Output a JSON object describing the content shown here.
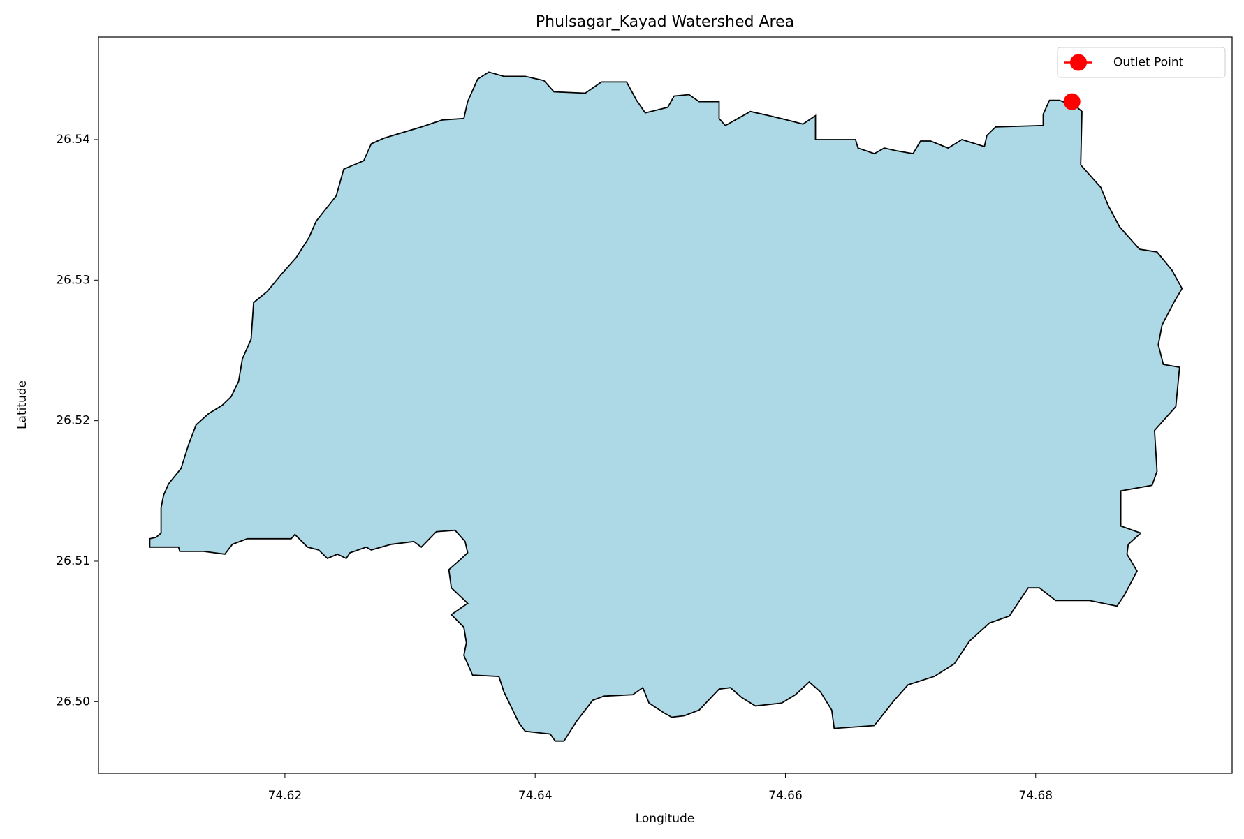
{
  "chart_data": {
    "type": "map",
    "title": "Phulsagar_Kayad Watershed Area",
    "x_label": "Longitude",
    "y_label": "Latitude",
    "xlim": [
      74.6051,
      74.6957
    ],
    "ylim": [
      26.4949,
      26.5473
    ],
    "xticks": [
      74.62,
      74.64,
      74.66,
      74.68
    ],
    "yticks": [
      {
        "value": 26.5,
        "label": "26.50"
      },
      26.51,
      26.52,
      26.53,
      26.54
    ],
    "grid": false,
    "legend_position": "upper right",
    "boundary": {
      "color": "#add8e6",
      "edge_color": "#000000",
      "x": [
        74.6092,
        74.6092,
        74.6115,
        74.6116,
        74.6135,
        74.6152,
        74.6158,
        74.617,
        74.6205,
        74.6208,
        74.6218,
        74.6227,
        74.6234,
        74.6242,
        74.6249,
        74.6252,
        74.6265,
        74.6269,
        74.6285,
        74.6303,
        74.6309,
        74.6321,
        74.6336,
        74.6344,
        74.6346,
        74.634,
        74.6331,
        74.6333,
        74.6346,
        74.6333,
        74.6343,
        74.6345,
        74.6343,
        74.635,
        74.6371,
        74.6375,
        74.6387,
        74.6392,
        74.6412,
        74.6416,
        74.6423,
        74.6433,
        74.6446,
        74.6455,
        74.6478,
        74.6486,
        74.6491,
        74.6503,
        74.6509,
        74.6519,
        74.6531,
        74.6547,
        74.6556,
        74.6565,
        74.6576,
        74.6597,
        74.6608,
        74.6619,
        74.6628,
        74.6637,
        74.6639,
        74.6671,
        74.6687,
        74.6698,
        74.6719,
        74.6735,
        74.6747,
        74.6763,
        74.6779,
        74.6794,
        74.6803,
        74.6816,
        74.6843,
        74.6865,
        74.6871,
        74.6881,
        74.6873,
        74.6874,
        74.6884,
        74.6868,
        74.6868,
        74.6893,
        74.6897,
        74.6895,
        74.6912,
        74.6915,
        74.6902,
        74.6898,
        74.6901,
        74.6911,
        74.6917,
        74.6909,
        74.6897,
        74.6883,
        74.6867,
        74.6858,
        74.6852,
        74.6836,
        74.6837,
        74.6833,
        74.6819,
        74.6811,
        74.6806,
        74.6806,
        74.6768,
        74.6761,
        74.6759,
        74.6741,
        74.673,
        74.6716,
        74.6708,
        74.6702,
        74.6689,
        74.6679,
        74.6671,
        74.6658,
        74.6656,
        74.6624,
        74.6624,
        74.6614,
        74.6601,
        74.6587,
        74.6572,
        74.6562,
        74.6552,
        74.6547,
        74.6547,
        74.6531,
        74.6523,
        74.6511,
        74.6506,
        74.6488,
        74.6481,
        74.6473,
        74.6453,
        74.644,
        74.6415,
        74.6407,
        74.6392,
        74.6375,
        74.6363,
        74.6354,
        74.6346,
        74.6343,
        74.6326,
        74.6309,
        74.6294,
        74.6279,
        74.6269,
        74.6263,
        74.6247,
        74.6241,
        74.6225,
        74.6219,
        74.6209,
        74.6197,
        74.6186,
        74.6175,
        74.6173,
        74.6166,
        74.6163,
        74.6157,
        74.615,
        74.6139,
        74.6129,
        74.6123,
        74.6117,
        74.6107,
        74.6103,
        74.6101,
        74.6101,
        74.6097
      ],
      "y": [
        26.5116,
        26.511,
        26.511,
        26.5107,
        26.5107,
        26.5105,
        26.5112,
        26.5116,
        26.5116,
        26.5119,
        26.511,
        26.5108,
        26.5102,
        26.5105,
        26.5102,
        26.5106,
        26.511,
        26.5108,
        26.5112,
        26.5114,
        26.511,
        26.5121,
        26.5122,
        26.5114,
        26.5106,
        26.5101,
        26.5094,
        26.5081,
        26.507,
        26.5062,
        26.5053,
        26.5042,
        26.5033,
        26.5019,
        26.5018,
        26.5007,
        26.4985,
        26.4979,
        26.4977,
        26.4972,
        26.4972,
        26.4986,
        26.5001,
        26.5004,
        26.5005,
        26.501,
        26.4999,
        26.4992,
        26.4989,
        26.499,
        26.4994,
        26.5009,
        26.501,
        26.5003,
        26.4997,
        26.4999,
        26.5005,
        26.5014,
        26.5007,
        26.4994,
        26.4981,
        26.4983,
        26.5001,
        26.5012,
        26.5018,
        26.5027,
        26.5043,
        26.5056,
        26.5061,
        26.5081,
        26.5081,
        26.5072,
        26.5072,
        26.5068,
        26.5076,
        26.5093,
        26.5105,
        26.5112,
        26.512,
        26.5125,
        26.515,
        26.5154,
        26.5164,
        26.5193,
        26.521,
        26.5238,
        26.524,
        26.5254,
        26.5268,
        26.5285,
        26.5294,
        26.5307,
        26.532,
        26.5322,
        26.5338,
        26.5353,
        26.5366,
        26.5382,
        26.542,
        26.5423,
        26.5428,
        26.5428,
        26.5418,
        26.541,
        26.5409,
        26.5403,
        26.5395,
        26.54,
        26.5394,
        26.5399,
        26.5399,
        26.539,
        26.5392,
        26.5394,
        26.539,
        26.5394,
        26.54,
        26.54,
        26.5417,
        26.5411,
        26.5414,
        26.5417,
        26.542,
        26.5415,
        26.541,
        26.5415,
        26.5427,
        26.5427,
        26.5432,
        26.5431,
        26.5423,
        26.5419,
        26.5428,
        26.5441,
        26.5441,
        26.5433,
        26.5434,
        26.5442,
        26.5445,
        26.5445,
        26.5448,
        26.5443,
        26.5427,
        26.5415,
        26.5414,
        26.5409,
        26.5405,
        26.5401,
        26.5397,
        26.5385,
        26.5379,
        26.536,
        26.5342,
        26.533,
        26.5316,
        26.5304,
        26.5292,
        26.5284,
        26.5258,
        26.5244,
        26.5228,
        26.5217,
        26.5211,
        26.5205,
        26.5197,
        26.5183,
        26.5166,
        26.5155,
        26.5147,
        26.5138,
        26.512,
        26.5117
      ]
    },
    "series": [
      {
        "name": "Outlet Point",
        "color": "#ff0000",
        "x": [
          74.6829
        ],
        "y": [
          26.5427
        ]
      }
    ]
  }
}
